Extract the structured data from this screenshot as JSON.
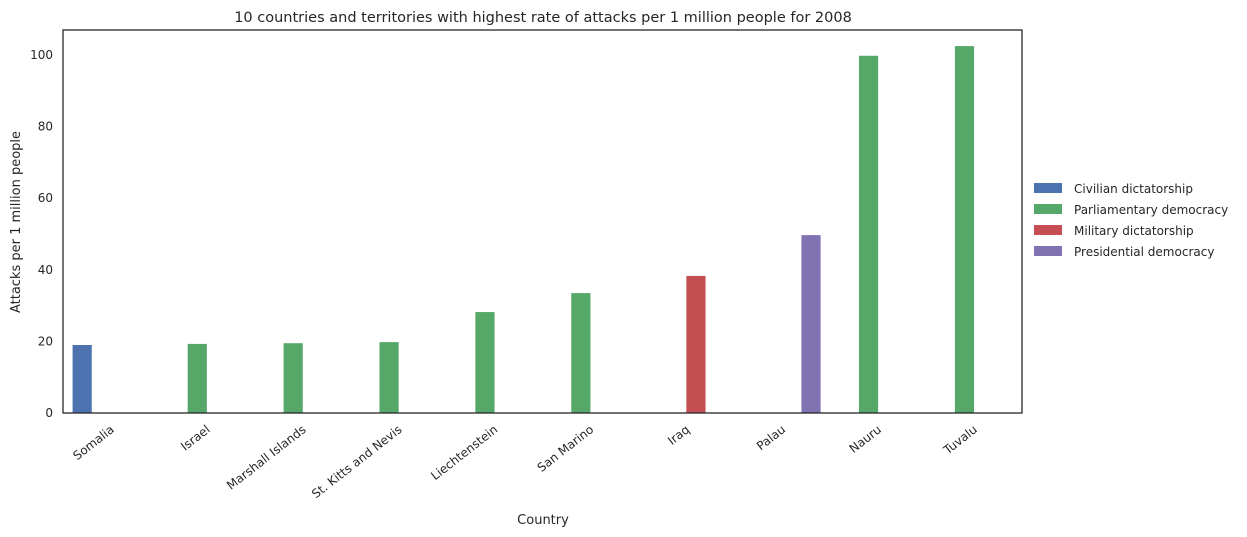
{
  "chart_data": {
    "type": "bar",
    "title": "10 countries and territories with highest rate of attacks per 1 million people for 2008",
    "xlabel": "Country",
    "ylabel": "Attacks per 1 million people",
    "ylim": [
      0,
      107
    ],
    "yticks": [
      0,
      20,
      40,
      60,
      80,
      100
    ],
    "grid": false,
    "legend_position": "center-right outside",
    "hues": [
      {
        "name": "Civilian dictatorship",
        "color": "#4c72b0"
      },
      {
        "name": "Parliamentary democracy",
        "color": "#55a868"
      },
      {
        "name": "Military dictatorship",
        "color": "#c44e52"
      },
      {
        "name": "Presidential democracy",
        "color": "#8172b2"
      }
    ],
    "categories": [
      "Somalia",
      "Israel",
      "Marshall Islands",
      "St. Kitts and Nevis",
      "Liechtenstein",
      "San Marino",
      "Iraq",
      "Palau",
      "Nauru",
      "Tuvalu"
    ],
    "bars": [
      {
        "category": "Somalia",
        "hue": "Civilian dictatorship",
        "value": 19.0
      },
      {
        "category": "Israel",
        "hue": "Parliamentary democracy",
        "value": 19.3
      },
      {
        "category": "Marshall Islands",
        "hue": "Parliamentary democracy",
        "value": 19.5
      },
      {
        "category": "St. Kitts and Nevis",
        "hue": "Parliamentary democracy",
        "value": 19.8
      },
      {
        "category": "Liechtenstein",
        "hue": "Parliamentary democracy",
        "value": 28.2
      },
      {
        "category": "San Marino",
        "hue": "Parliamentary democracy",
        "value": 33.5
      },
      {
        "category": "Iraq",
        "hue": "Military dictatorship",
        "value": 38.3
      },
      {
        "category": "Palau",
        "hue": "Presidential democracy",
        "value": 49.7
      },
      {
        "category": "Nauru",
        "hue": "Parliamentary democracy",
        "value": 99.8
      },
      {
        "category": "Tuvalu",
        "hue": "Parliamentary democracy",
        "value": 102.5
      }
    ]
  }
}
